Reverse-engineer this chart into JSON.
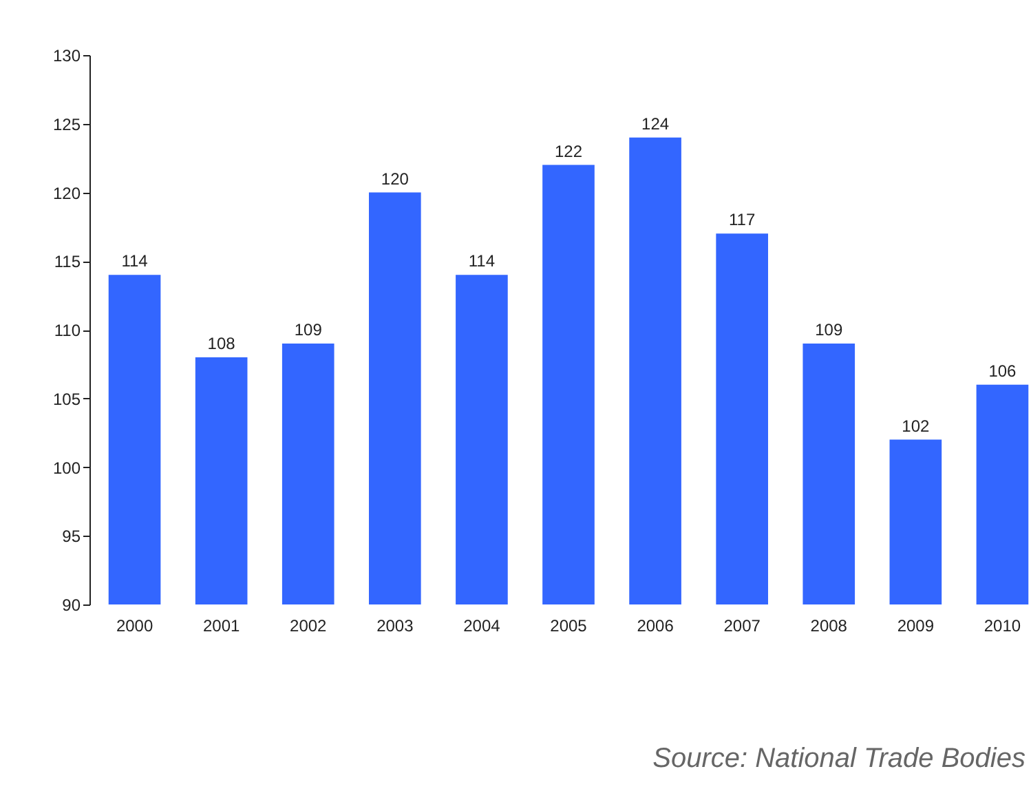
{
  "chart_data": {
    "type": "bar",
    "categories": [
      "2000",
      "2001",
      "2002",
      "2003",
      "2004",
      "2005",
      "2006",
      "2007",
      "2008",
      "2009",
      "2010"
    ],
    "values": [
      114,
      108,
      109,
      120,
      114,
      122,
      124,
      117,
      109,
      102,
      106
    ],
    "color": "#3366ff",
    "ylim": [
      90,
      130
    ],
    "yticks": [
      90,
      95,
      100,
      105,
      110,
      115,
      120,
      125,
      130
    ],
    "grid": false,
    "data_labels": true,
    "annotations": [
      "Source: National Trade Bodies"
    ]
  }
}
